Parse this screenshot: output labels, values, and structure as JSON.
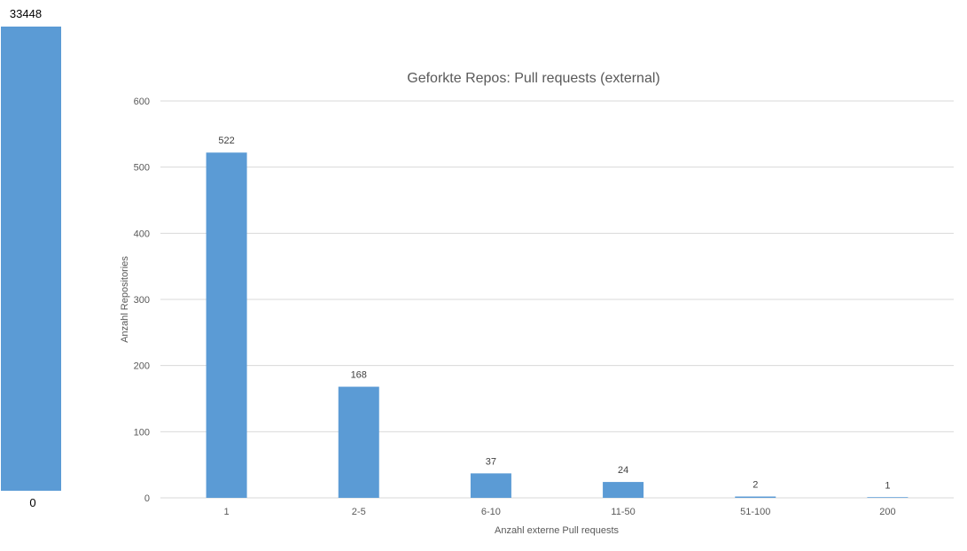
{
  "colors": {
    "bar": "#5b9bd5",
    "grid": "#d9d9d9",
    "text": "#595959"
  },
  "side_bar": {
    "top_label": "33448",
    "bottom_label": "0",
    "value": 33448
  },
  "chart_data": {
    "type": "bar",
    "title": "Geforkte Repos: Pull requests (external)",
    "xlabel": "Anzahl externe  Pull requests",
    "ylabel": "Anzahl Repositories",
    "categories": [
      "1",
      "2-5",
      "6-10",
      "11-50",
      "51-100",
      "200"
    ],
    "values": [
      522,
      168,
      37,
      24,
      2,
      1
    ],
    "data_labels": [
      "522",
      "168",
      "37",
      "24",
      "2",
      "1"
    ],
    "ylim": [
      0,
      600
    ],
    "yticks": [
      0,
      100,
      200,
      300,
      400,
      500,
      600
    ],
    "ytick_labels": [
      "0",
      "100",
      "200",
      "300",
      "400",
      "500",
      "600"
    ],
    "grid": true,
    "legend": "none"
  }
}
